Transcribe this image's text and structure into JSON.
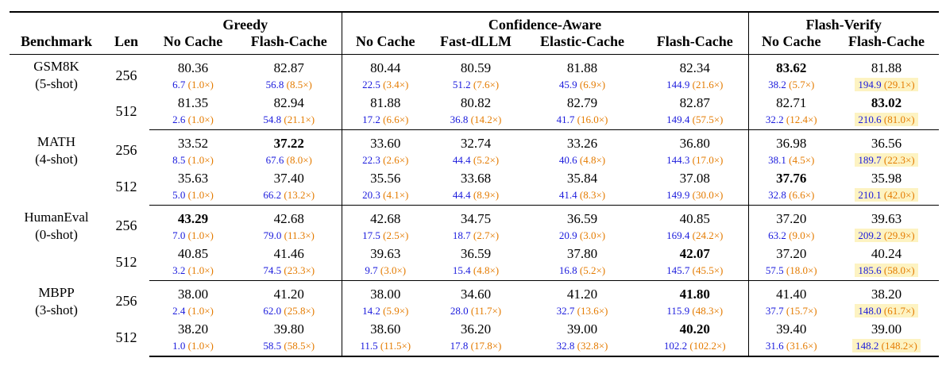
{
  "header": {
    "groups": [
      "Greedy",
      "Confidence-Aware",
      "Flash-Verify"
    ],
    "benchmark_label": "Benchmark",
    "len_label": "Len",
    "columns": [
      "No Cache",
      "Flash-Cache",
      "No Cache",
      "Fast-dLLM",
      "Elastic-Cache",
      "Flash-Cache",
      "No Cache",
      "Flash-Cache"
    ]
  },
  "benchmarks": [
    {
      "name": "GSM8K",
      "shot": "(5-shot)",
      "rows": [
        {
          "len": "256",
          "acc": [
            "80.36",
            "82.87",
            "80.44",
            "80.59",
            "81.88",
            "82.34",
            "83.62",
            "81.88"
          ],
          "bold": [
            false,
            false,
            false,
            false,
            false,
            false,
            true,
            false
          ],
          "tp": [
            "6.7",
            "56.8",
            "22.5",
            "51.2",
            "45.9",
            "144.9",
            "38.2",
            "194.9"
          ],
          "sp": [
            "(1.0×)",
            "(8.5×)",
            "(3.4×)",
            "(7.6×)",
            "(6.9×)",
            "(21.6×)",
            "(5.7×)",
            "(29.1×)"
          ]
        },
        {
          "len": "512",
          "acc": [
            "81.35",
            "82.94",
            "81.88",
            "80.82",
            "82.79",
            "82.87",
            "82.71",
            "83.02"
          ],
          "bold": [
            false,
            false,
            false,
            false,
            false,
            false,
            false,
            true
          ],
          "tp": [
            "2.6",
            "54.8",
            "17.2",
            "36.8",
            "41.7",
            "149.4",
            "32.2",
            "210.6"
          ],
          "sp": [
            "(1.0×)",
            "(21.1×)",
            "(6.6×)",
            "(14.2×)",
            "(16.0×)",
            "(57.5×)",
            "(12.4×)",
            "(81.0×)"
          ]
        }
      ]
    },
    {
      "name": "MATH",
      "shot": "(4-shot)",
      "rows": [
        {
          "len": "256",
          "acc": [
            "33.52",
            "37.22",
            "33.60",
            "32.74",
            "33.26",
            "36.80",
            "36.98",
            "36.56"
          ],
          "bold": [
            false,
            true,
            false,
            false,
            false,
            false,
            false,
            false
          ],
          "tp": [
            "8.5",
            "67.6",
            "22.3",
            "44.4",
            "40.6",
            "144.3",
            "38.1",
            "189.7"
          ],
          "sp": [
            "(1.0×)",
            "(8.0×)",
            "(2.6×)",
            "(5.2×)",
            "(4.8×)",
            "(17.0×)",
            "(4.5×)",
            "(22.3×)"
          ]
        },
        {
          "len": "512",
          "acc": [
            "35.63",
            "37.40",
            "35.56",
            "33.68",
            "35.84",
            "37.08",
            "37.76",
            "35.98"
          ],
          "bold": [
            false,
            false,
            false,
            false,
            false,
            false,
            true,
            false
          ],
          "tp": [
            "5.0",
            "66.2",
            "20.3",
            "44.4",
            "41.4",
            "149.9",
            "32.8",
            "210.1"
          ],
          "sp": [
            "(1.0×)",
            "(13.2×)",
            "(4.1×)",
            "(8.9×)",
            "(8.3×)",
            "(30.0×)",
            "(6.6×)",
            "(42.0×)"
          ]
        }
      ]
    },
    {
      "name": "HumanEval",
      "shot": "(0-shot)",
      "rows": [
        {
          "len": "256",
          "acc": [
            "43.29",
            "42.68",
            "42.68",
            "34.75",
            "36.59",
            "40.85",
            "37.20",
            "39.63"
          ],
          "bold": [
            true,
            false,
            false,
            false,
            false,
            false,
            false,
            false
          ],
          "tp": [
            "7.0",
            "79.0",
            "17.5",
            "18.7",
            "20.9",
            "169.4",
            "63.2",
            "209.2"
          ],
          "sp": [
            "(1.0×)",
            "(11.3×)",
            "(2.5×)",
            "(2.7×)",
            "(3.0×)",
            "(24.2×)",
            "(9.0×)",
            "(29.9×)"
          ]
        },
        {
          "len": "512",
          "acc": [
            "40.85",
            "41.46",
            "39.63",
            "36.59",
            "37.80",
            "42.07",
            "37.20",
            "40.24"
          ],
          "bold": [
            false,
            false,
            false,
            false,
            false,
            true,
            false,
            false
          ],
          "tp": [
            "3.2",
            "74.5",
            "9.7",
            "15.4",
            "16.8",
            "145.7",
            "57.5",
            "185.6"
          ],
          "sp": [
            "(1.0×)",
            "(23.3×)",
            "(3.0×)",
            "(4.8×)",
            "(5.2×)",
            "(45.5×)",
            "(18.0×)",
            "(58.0×)"
          ]
        }
      ]
    },
    {
      "name": "MBPP",
      "shot": "(3-shot)",
      "rows": [
        {
          "len": "256",
          "acc": [
            "38.00",
            "41.20",
            "38.00",
            "34.60",
            "41.20",
            "41.80",
            "41.40",
            "38.20"
          ],
          "bold": [
            false,
            false,
            false,
            false,
            false,
            true,
            false,
            false
          ],
          "tp": [
            "2.4",
            "62.0",
            "14.2",
            "28.0",
            "32.7",
            "115.9",
            "37.7",
            "148.0"
          ],
          "sp": [
            "(1.0×)",
            "(25.8×)",
            "(5.9×)",
            "(11.7×)",
            "(13.6×)",
            "(48.3×)",
            "(15.7×)",
            "(61.7×)"
          ]
        },
        {
          "len": "512",
          "acc": [
            "38.20",
            "39.80",
            "38.60",
            "36.20",
            "39.00",
            "40.20",
            "39.40",
            "39.00"
          ],
          "bold": [
            false,
            false,
            false,
            false,
            false,
            true,
            false,
            false
          ],
          "tp": [
            "1.0",
            "58.5",
            "11.5",
            "17.8",
            "32.8",
            "102.2",
            "31.6",
            "148.2"
          ],
          "sp": [
            "(1.0×)",
            "(58.5×)",
            "(11.5×)",
            "(17.8×)",
            "(32.8×)",
            "(102.2×)",
            "(31.6×)",
            "(148.2×)"
          ]
        }
      ]
    }
  ],
  "colors": {
    "throughput": "#1a1adc",
    "speedup": "#e47b00",
    "highlight": "#fdf3c2"
  }
}
